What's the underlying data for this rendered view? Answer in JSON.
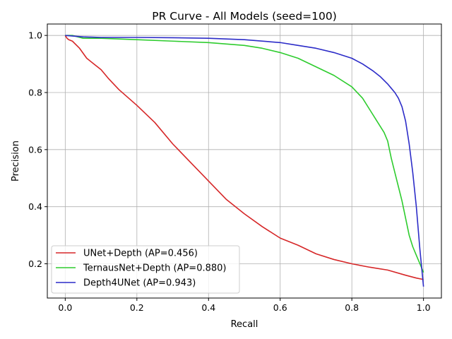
{
  "chart_data": {
    "type": "line",
    "title": "PR Curve - All Models (seed=100)",
    "xlabel": "Recall",
    "ylabel": "Precision",
    "xlim": [
      -0.05,
      1.05
    ],
    "ylim": [
      0.08,
      1.04
    ],
    "xticks": [
      0.0,
      0.2,
      0.4,
      0.6,
      0.8,
      1.0
    ],
    "xtick_labels": [
      "0.0",
      "0.2",
      "0.4",
      "0.6",
      "0.8",
      "1.0"
    ],
    "yticks": [
      0.2,
      0.4,
      0.6,
      0.8,
      1.0
    ],
    "ytick_labels": [
      "0.2",
      "0.4",
      "0.6",
      "0.8",
      "1.0"
    ],
    "grid": true,
    "legend_position": "lower-left",
    "series": [
      {
        "name": "UNet+Depth (AP=0.456)",
        "color": "#d62728",
        "x": [
          0.0,
          0.005,
          0.01,
          0.02,
          0.04,
          0.06,
          0.08,
          0.1,
          0.12,
          0.15,
          0.2,
          0.25,
          0.3,
          0.35,
          0.4,
          0.45,
          0.5,
          0.55,
          0.6,
          0.65,
          0.7,
          0.75,
          0.8,
          0.85,
          0.9,
          0.95,
          0.98,
          1.0
        ],
        "y": [
          1.0,
          0.99,
          0.985,
          0.98,
          0.955,
          0.92,
          0.9,
          0.88,
          0.85,
          0.81,
          0.755,
          0.695,
          0.62,
          0.555,
          0.49,
          0.425,
          0.375,
          0.33,
          0.29,
          0.265,
          0.235,
          0.215,
          0.2,
          0.188,
          0.178,
          0.16,
          0.15,
          0.145
        ]
      },
      {
        "name": "TernausNet+Depth (AP=0.880)",
        "color": "#2ecc2e",
        "x": [
          0.0,
          0.02,
          0.05,
          0.1,
          0.2,
          0.3,
          0.4,
          0.5,
          0.55,
          0.6,
          0.65,
          0.7,
          0.75,
          0.8,
          0.83,
          0.85,
          0.87,
          0.89,
          0.9,
          0.91,
          0.92,
          0.93,
          0.94,
          0.95,
          0.96,
          0.97,
          0.98,
          0.99,
          1.0
        ],
        "y": [
          1.0,
          1.0,
          0.99,
          0.99,
          0.985,
          0.98,
          0.975,
          0.965,
          0.955,
          0.94,
          0.92,
          0.89,
          0.86,
          0.82,
          0.78,
          0.74,
          0.7,
          0.66,
          0.63,
          0.57,
          0.52,
          0.47,
          0.42,
          0.36,
          0.3,
          0.26,
          0.23,
          0.2,
          0.17
        ]
      },
      {
        "name": "Depth4UNet (AP=0.943)",
        "color": "#2c2cc8",
        "x": [
          0.0,
          0.05,
          0.1,
          0.2,
          0.3,
          0.4,
          0.5,
          0.6,
          0.65,
          0.7,
          0.75,
          0.8,
          0.83,
          0.86,
          0.88,
          0.9,
          0.91,
          0.92,
          0.93,
          0.94,
          0.95,
          0.96,
          0.97,
          0.98,
          0.99,
          1.0
        ],
        "y": [
          1.0,
          0.995,
          0.993,
          0.993,
          0.992,
          0.99,
          0.985,
          0.975,
          0.965,
          0.955,
          0.94,
          0.92,
          0.9,
          0.875,
          0.855,
          0.83,
          0.815,
          0.8,
          0.78,
          0.75,
          0.7,
          0.62,
          0.52,
          0.4,
          0.25,
          0.12
        ]
      }
    ]
  }
}
